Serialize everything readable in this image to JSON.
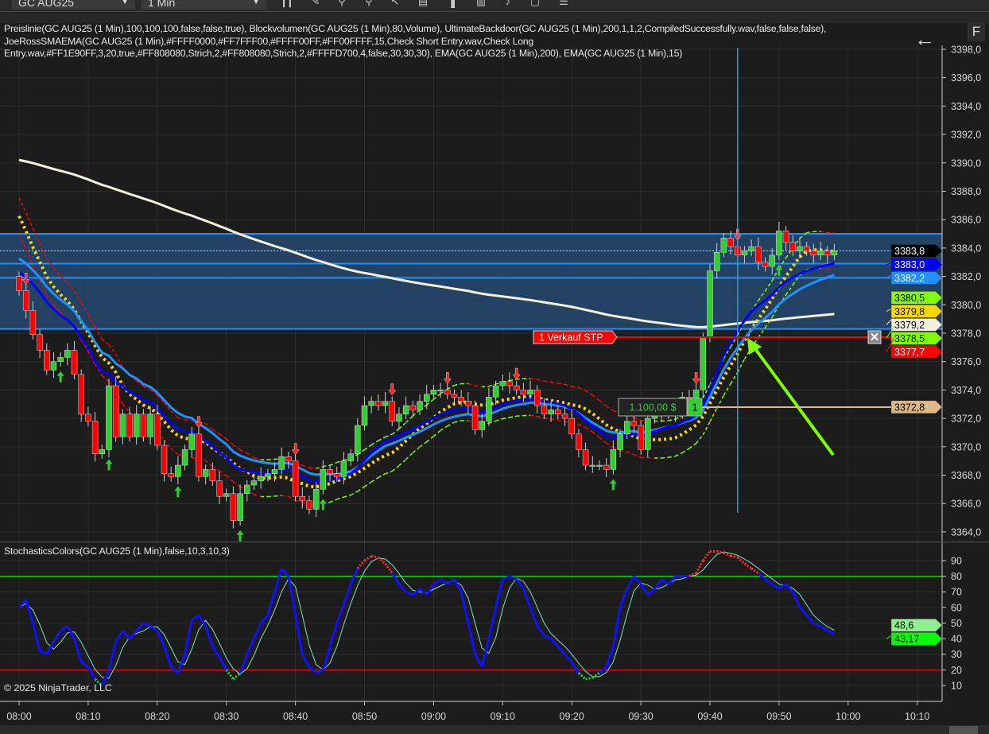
{
  "toolbar": {
    "instrument": "GC AUG25",
    "timeframe": "1 Min",
    "icons": [
      "bar-chart-icon",
      "pencil-icon",
      "zoom-in-icon",
      "zoom-out-icon",
      "cursor-icon",
      "data-box-icon",
      "volume-icon",
      "strategy-icon",
      "chart-trader-icon",
      "fx-icon",
      "properties-icon"
    ]
  },
  "legend": {
    "line1": "Preislinie(GC AUG25 (1 Min),100,100,100,false,false,true), Blockvolumen(GC AUG25 (1 Min),80,Volume), UltimateBackdoor(GC AUG25 (1 Min),200,1,1,2,CompiledSuccessfully.wav,false,false,false),",
    "line2": "JoeRossSMAEMA(GC AUG25 (1 Min),#FFFF0000,#FF7FFF00,#FFFF00FF,#FF00FFFF,15,Check Short Entry.wav,Check Long",
    "line3": "Entry.wav,#FF1E90FF,3,20,true,#FF808080,Strich,2,#FF808080,Strich,2,#FFFFD700,4,false,30,30,30), EMA(GC AUG25 (1 Min),200), EMA(GC AUG25 (1 Min),15)"
  },
  "buttons": {
    "back": "←",
    "f": "F"
  },
  "stoch_title": "StochasticsColors(GC AUG25 (1 Min),false,10,3,10,3)",
  "copyright": "© 2025 NinjaTrader, LLC",
  "order": {
    "label": "1  Verkauf STP",
    "price": 3377.7,
    "pnl": "1.100,00 $",
    "qty": "1",
    "entry_price": 3372.8
  },
  "chart_data": {
    "type": "candlestick",
    "instrument": "GC AUG25",
    "interval": "1 Min",
    "price_ticks": [
      "3398,0",
      "3396,0",
      "3394,0",
      "3392,0",
      "3390,0",
      "3388,0",
      "3386,0",
      "3384,0",
      "3382,0",
      "3380,0",
      "3378,0",
      "3376,0",
      "3374,0",
      "3372,0",
      "3370,0",
      "3368,0",
      "3366,0",
      "3364,0"
    ],
    "ylim": [
      3363.5,
      3399
    ],
    "time_ticks": [
      "08:00",
      "08:10",
      "08:20",
      "08:30",
      "08:40",
      "08:50",
      "09:00",
      "09:10",
      "09:20",
      "09:30",
      "09:40",
      "09:50",
      "10:00",
      "10:10"
    ],
    "first_open": 3382.0,
    "closes": [
      3381.0,
      3379.6,
      3377.9,
      3376.8,
      3375.4,
      3376.0,
      3376.3,
      3376.8,
      3375.1,
      3372.3,
      3371.8,
      3369.5,
      3369.8,
      3374.3,
      3370.7,
      3372.3,
      3370.7,
      3372.3,
      3370.7,
      3372.3,
      3370.1,
      3368.1,
      3367.9,
      3368.7,
      3369.8,
      3370.9,
      3367.9,
      3368.4,
      3367.6,
      3366.5,
      3366.7,
      3364.8,
      3366.7,
      3367.3,
      3367.6,
      3367.9,
      3368.1,
      3368.4,
      3369.3,
      3369.0,
      3366.5,
      3366.2,
      3365.6,
      3367.0,
      3368.4,
      3368.1,
      3367.9,
      3369.0,
      3369.5,
      3371.5,
      3372.9,
      3373.2,
      3372.9,
      3373.2,
      3371.8,
      3372.3,
      3372.9,
      3372.6,
      3373.2,
      3373.7,
      3374.0,
      3374.0,
      3373.7,
      3373.5,
      3373.2,
      3372.9,
      3371.2,
      3371.8,
      3373.5,
      3374.3,
      3374.6,
      3374.3,
      3374.0,
      3373.7,
      3374.0,
      3372.9,
      3372.3,
      3372.6,
      3372.3,
      3372.0,
      3370.9,
      3369.8,
      3368.7,
      3368.7,
      3368.7,
      3368.4,
      3369.8,
      3370.9,
      3371.8,
      3371.5,
      3369.8,
      3372.0,
      3372.3,
      3372.3,
      3372.6,
      3372.3,
      3373.5,
      3373.2,
      3374.0,
      3377.7,
      3382.4,
      3383.7,
      3384.7,
      3384.1,
      3383.5,
      3383.8,
      3384.1,
      3383.0,
      3382.7,
      3383.5,
      3385.2,
      3384.4,
      3383.8,
      3384.1,
      3383.8,
      3383.5,
      3383.8,
      3383.5,
      3383.8
    ],
    "zone": {
      "top": 3385.0,
      "lines": [
        3385.0,
        3382.9,
        3381.9,
        3378.3
      ],
      "bottom": 3378.3
    },
    "last_price": 3383.8,
    "price_labels": [
      {
        "text": "3383,8",
        "value": 3383.8,
        "bg": "#000000",
        "fg": "#ffffff"
      },
      {
        "text": "3383,0",
        "value": 3383.0,
        "bg": "#0000ff",
        "fg": "#ffffff"
      },
      {
        "text": "3382,2",
        "value": 3382.2,
        "bg": "#1e90ff",
        "fg": "#ffffff"
      },
      {
        "text": "3378,5",
        "value": 3378.5,
        "bg": "#7fff00",
        "fg": "#000000"
      },
      {
        "text": "3379,8",
        "value": 3379.8,
        "bg": "#ffd700",
        "fg": "#000000"
      },
      {
        "text": "3380,5",
        "value": 3380.5,
        "bg": "#7fff00",
        "fg": "#000000"
      },
      {
        "text": "3379,2",
        "value": 3379.2,
        "bg": "#f5f0dc",
        "fg": "#000000"
      },
      {
        "text": "3377,7",
        "value": 3377.7,
        "bg": "#ff0000",
        "fg": "#ffffff"
      },
      {
        "text": "3372,8",
        "value": 3372.8,
        "bg": "#deb887",
        "fg": "#000000"
      }
    ],
    "sell_signals": [
      "08:01",
      "08:26",
      "08:40",
      "08:54",
      "09:02",
      "09:12",
      "09:38",
      "09:44"
    ],
    "buy_signals": [
      "08:06",
      "08:13",
      "08:23",
      "08:32",
      "08:44",
      "09:26",
      "09:50"
    ],
    "crosshair_time": "09:44",
    "stochastics": {
      "ylim": [
        0,
        100
      ],
      "ticks": [
        "90",
        "80",
        "70",
        "60",
        "50",
        "40",
        "30",
        "20",
        "10"
      ],
      "levels": {
        "upper": 80,
        "lower": 20
      },
      "k": [
        60,
        65,
        50,
        32,
        30,
        38,
        45,
        48,
        40,
        25,
        22,
        14,
        10,
        20,
        38,
        45,
        40,
        45,
        50,
        48,
        45,
        35,
        22,
        18,
        30,
        52,
        55,
        48,
        35,
        28,
        20,
        14,
        18,
        30,
        40,
        50,
        55,
        70,
        85,
        80,
        55,
        30,
        22,
        18,
        20,
        35,
        50,
        62,
        75,
        85,
        90,
        93,
        92,
        88,
        82,
        75,
        70,
        68,
        72,
        68,
        75,
        78,
        75,
        78,
        70,
        50,
        30,
        22,
        40,
        60,
        78,
        80,
        78,
        72,
        60,
        48,
        42,
        40,
        35,
        30,
        25,
        18,
        14,
        15,
        18,
        22,
        35,
        60,
        72,
        80,
        75,
        68,
        72,
        78,
        75,
        80,
        80,
        80,
        82,
        90,
        96,
        96,
        95,
        93,
        92,
        88,
        85,
        82,
        78,
        75,
        72,
        75,
        70,
        60,
        55,
        50,
        48,
        45,
        43.17
      ],
      "last_label": "43,17",
      "d_label": "48,6"
    },
    "colors": {
      "up": "#32cd32",
      "down": "#ff0000",
      "ema15": "#0000ff",
      "ema_fast": "#1e90ff",
      "ema200": "#f5f0dc",
      "sma": "#ffd700",
      "band_down": "#ff0000",
      "band_up": "#7fff00",
      "zone": "#24486e",
      "crosshair": "#1ea0e6",
      "signal_arrow": "#7fff00"
    }
  }
}
